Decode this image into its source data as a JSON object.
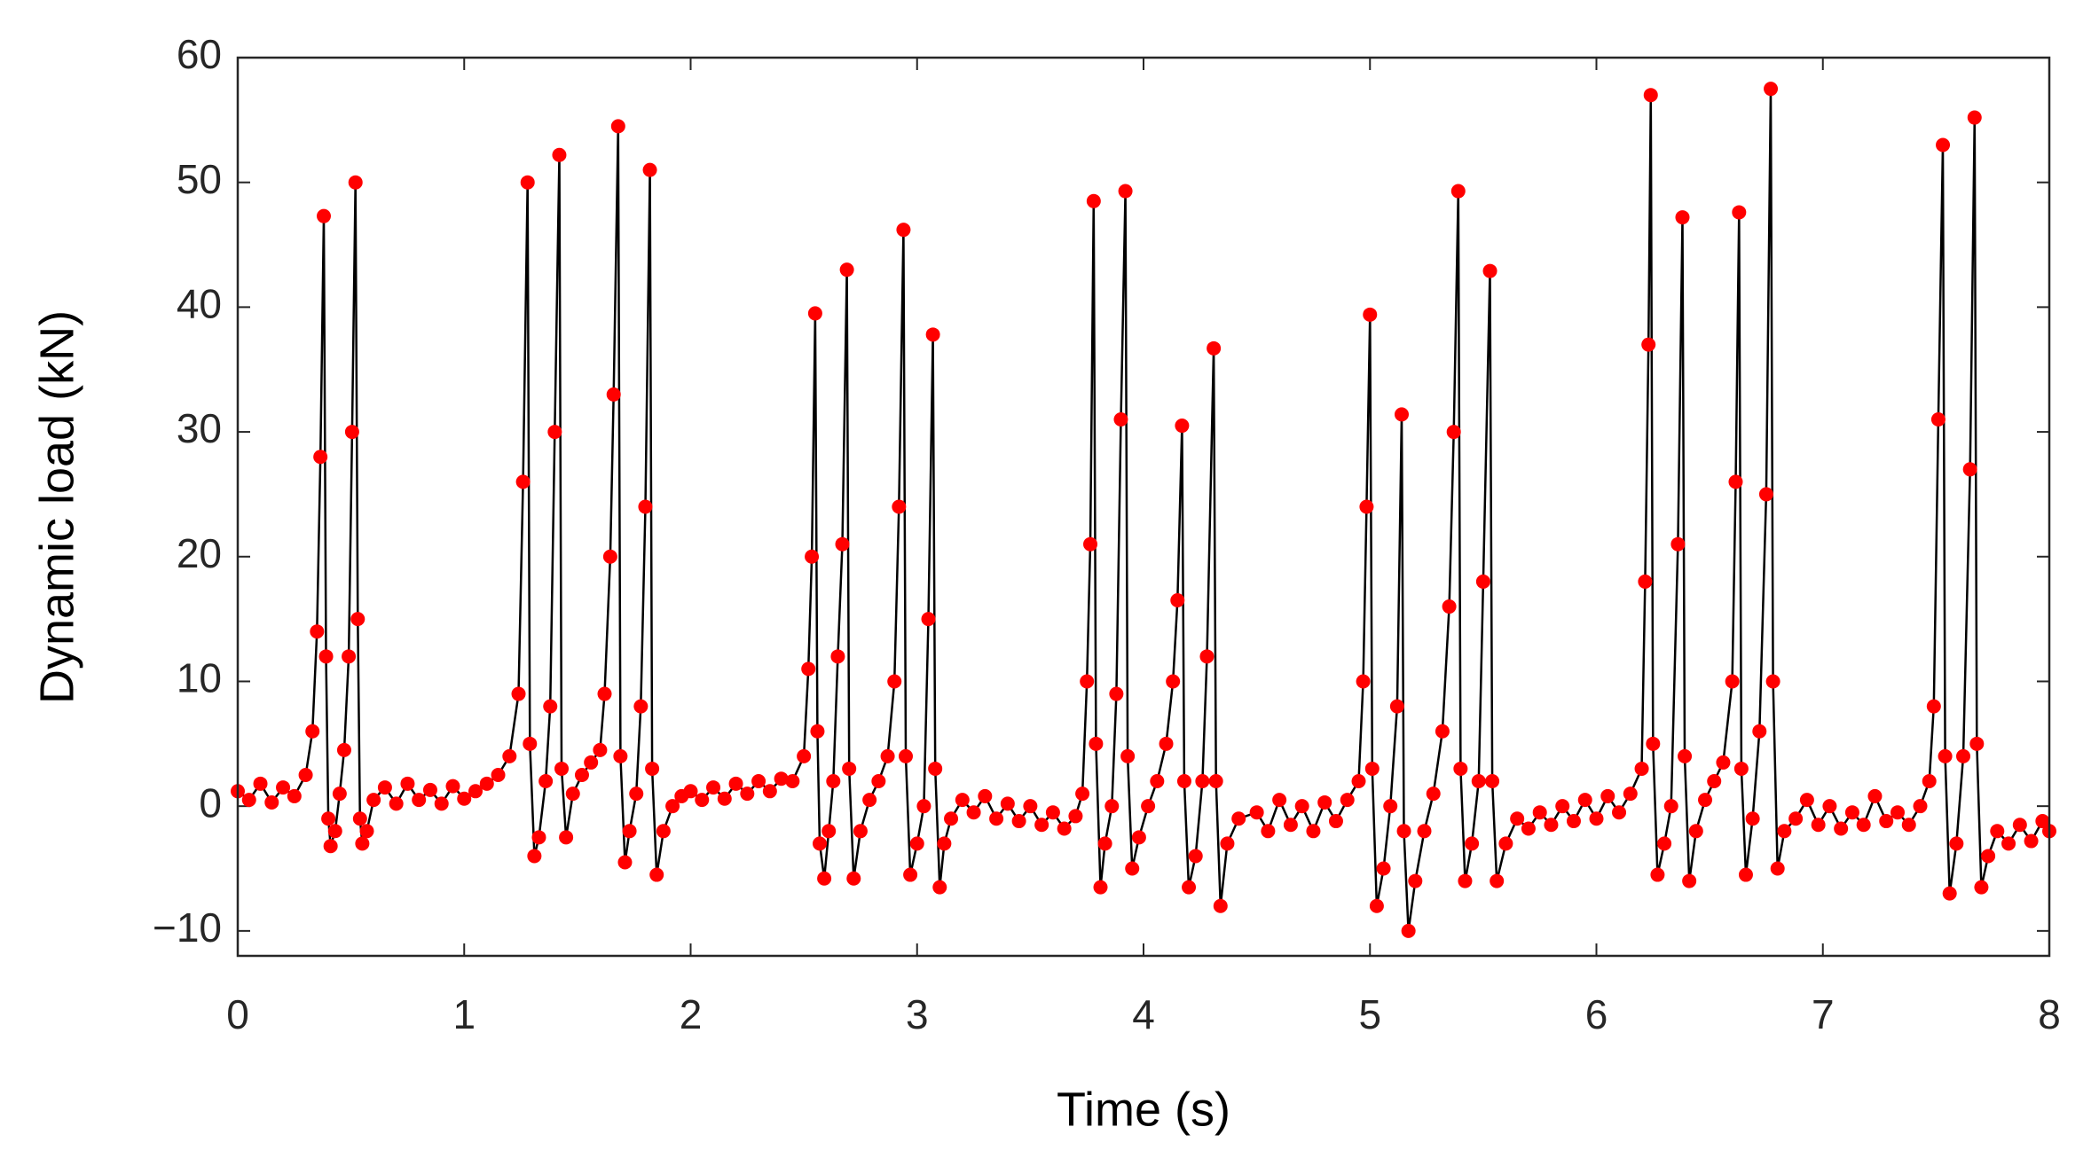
{
  "chart_data": {
    "type": "line",
    "x_label": "Time (s)",
    "y_label": "Dynamic load (kN)",
    "color": "#ff0000",
    "line_color": "#000000",
    "markers": true,
    "xlim": [
      0,
      8
    ],
    "xticks": [
      0,
      1,
      2,
      3,
      4,
      5,
      6,
      7,
      8
    ],
    "ylim": [
      -12,
      60
    ],
    "yticks": [
      {
        "value": -10,
        "label": "−10"
      },
      0,
      10,
      20,
      30,
      40,
      50,
      60
    ],
    "x": [
      0,
      0.05,
      0.1,
      0.15,
      0.2,
      0.25,
      0.3,
      0.33,
      0.35,
      0.365,
      0.38,
      0.39,
      0.4,
      0.41,
      0.43,
      0.45,
      0.47,
      0.49,
      0.505,
      0.52,
      0.53,
      0.54,
      0.55,
      0.57,
      0.6,
      0.65,
      0.7,
      0.75,
      0.8,
      0.85,
      0.9,
      0.95,
      1.0,
      1.05,
      1.1,
      1.15,
      1.2,
      1.24,
      1.26,
      1.28,
      1.29,
      1.31,
      1.33,
      1.36,
      1.38,
      1.4,
      1.42,
      1.43,
      1.45,
      1.48,
      1.52,
      1.56,
      1.6,
      1.62,
      1.645,
      1.66,
      1.68,
      1.69,
      1.71,
      1.73,
      1.76,
      1.78,
      1.8,
      1.82,
      1.83,
      1.85,
      1.88,
      1.92,
      1.96,
      2.0,
      2.05,
      2.1,
      2.15,
      2.2,
      2.25,
      2.3,
      2.35,
      2.4,
      2.45,
      2.5,
      2.52,
      2.535,
      2.55,
      2.56,
      2.57,
      2.59,
      2.61,
      2.63,
      2.65,
      2.67,
      2.69,
      2.7,
      2.72,
      2.75,
      2.79,
      2.83,
      2.87,
      2.9,
      2.92,
      2.94,
      2.95,
      2.97,
      3.0,
      3.03,
      3.05,
      3.07,
      3.08,
      3.1,
      3.12,
      3.15,
      3.2,
      3.25,
      3.3,
      3.35,
      3.4,
      3.45,
      3.5,
      3.55,
      3.6,
      3.65,
      3.7,
      3.73,
      3.75,
      3.765,
      3.78,
      3.79,
      3.81,
      3.83,
      3.86,
      3.88,
      3.9,
      3.92,
      3.93,
      3.95,
      3.98,
      4.02,
      4.06,
      4.1,
      4.13,
      4.15,
      4.17,
      4.18,
      4.2,
      4.23,
      4.26,
      4.28,
      4.31,
      4.32,
      4.34,
      4.37,
      4.42,
      4.5,
      4.55,
      4.6,
      4.65,
      4.7,
      4.75,
      4.8,
      4.85,
      4.9,
      4.95,
      4.97,
      4.985,
      5.0,
      5.01,
      5.03,
      5.06,
      5.09,
      5.12,
      5.14,
      5.15,
      5.17,
      5.2,
      5.24,
      5.28,
      5.32,
      5.35,
      5.37,
      5.39,
      5.4,
      5.42,
      5.45,
      5.48,
      5.5,
      5.53,
      5.54,
      5.56,
      5.6,
      5.65,
      5.7,
      5.75,
      5.8,
      5.85,
      5.9,
      5.95,
      6.0,
      6.05,
      6.1,
      6.15,
      6.2,
      6.215,
      6.23,
      6.24,
      6.25,
      6.27,
      6.3,
      6.33,
      6.36,
      6.38,
      6.39,
      6.41,
      6.44,
      6.48,
      6.52,
      6.56,
      6.6,
      6.615,
      6.63,
      6.64,
      6.66,
      6.69,
      6.72,
      6.75,
      6.77,
      6.78,
      6.8,
      6.83,
      6.88,
      6.93,
      6.98,
      7.03,
      7.08,
      7.13,
      7.18,
      7.23,
      7.28,
      7.33,
      7.38,
      7.43,
      7.47,
      7.49,
      7.51,
      7.53,
      7.54,
      7.56,
      7.59,
      7.62,
      7.65,
      7.67,
      7.68,
      7.7,
      7.73,
      7.77,
      7.82,
      7.87,
      7.92,
      7.97,
      8.0
    ],
    "values": [
      1.2,
      0.5,
      1.8,
      0.3,
      1.5,
      0.8,
      2.5,
      6,
      14,
      28,
      47.3,
      12,
      -1,
      -3.2,
      -2,
      1,
      4.5,
      12,
      30,
      50,
      15,
      -1,
      -3,
      -2,
      0.5,
      1.5,
      0.2,
      1.8,
      0.5,
      1.3,
      0.2,
      1.6,
      0.6,
      1.2,
      1.8,
      2.5,
      4,
      9,
      26,
      50,
      5,
      -4,
      -2.5,
      2,
      8,
      30,
      52.2,
      3,
      -2.5,
      1,
      2.5,
      3.5,
      4.5,
      9,
      20,
      33,
      54.5,
      4,
      -4.5,
      -2,
      1,
      8,
      24,
      51,
      3,
      -5.5,
      -2,
      0,
      0.8,
      1.2,
      0.5,
      1.5,
      0.6,
      1.8,
      1,
      2,
      1.2,
      2.2,
      2,
      4,
      11,
      20,
      39.5,
      6,
      -3,
      -5.8,
      -2,
      2,
      12,
      21,
      43,
      3,
      -5.8,
      -2,
      0.5,
      2,
      4,
      10,
      24,
      46.2,
      4,
      -5.5,
      -3,
      0,
      15,
      37.8,
      3,
      -6.5,
      -3,
      -1,
      0.5,
      -0.5,
      0.8,
      -1,
      0.2,
      -1.2,
      0,
      -1.5,
      -0.5,
      -1.8,
      -0.8,
      1,
      10,
      21,
      48.5,
      5,
      -6.5,
      -3,
      0,
      9,
      31,
      49.3,
      4,
      -5,
      -2.5,
      0,
      2,
      5,
      10,
      16.5,
      30.5,
      2,
      -6.5,
      -4,
      2,
      12,
      36.7,
      2,
      -8,
      -3,
      -1,
      -0.5,
      -2,
      0.5,
      -1.5,
      0,
      -2,
      0.3,
      -1.2,
      0.5,
      2,
      10,
      24,
      39.4,
      3,
      -8,
      -5,
      0,
      8,
      31.4,
      -2,
      -10,
      -6,
      -2,
      1,
      6,
      16,
      30,
      49.3,
      3,
      -6,
      -3,
      2,
      18,
      42.9,
      2,
      -6,
      -3,
      -1,
      -1.8,
      -0.5,
      -1.5,
      0,
      -1.2,
      0.5,
      -1,
      0.8,
      -0.5,
      1,
      3,
      18,
      37,
      57,
      5,
      -5.5,
      -3,
      0,
      21,
      47.2,
      4,
      -6,
      -2,
      0.5,
      2,
      3.5,
      10,
      26,
      47.6,
      3,
      -5.5,
      -1,
      6,
      25,
      57.5,
      10,
      -5,
      -2,
      -1,
      0.5,
      -1.5,
      0,
      -1.8,
      -0.5,
      -1.5,
      0.8,
      -1.2,
      -0.5,
      -1.5,
      0,
      2,
      8,
      31,
      53,
      4,
      -7,
      -3,
      4,
      27,
      55.2,
      5,
      -6.5,
      -4,
      -2,
      -3,
      -1.5,
      -2.8,
      -1.2,
      -2
    ]
  }
}
